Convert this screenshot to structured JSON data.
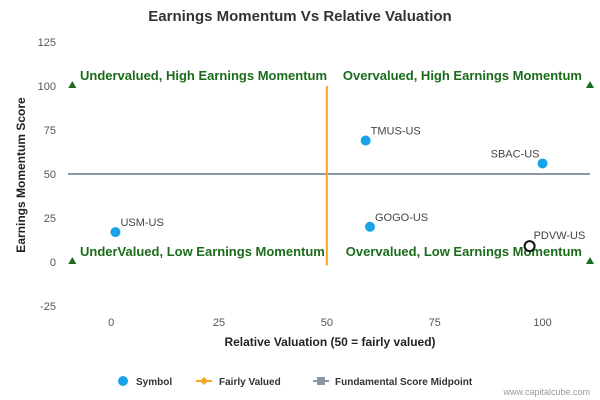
{
  "chart_data": {
    "type": "scatter",
    "title": "Earnings Momentum Vs Relative Valuation",
    "xlabel": "Relative Valuation (50 = fairly valued)",
    "ylabel": "Earnings Momentum Score",
    "xlim": [
      -10,
      111
    ],
    "ylim": [
      -25,
      125
    ],
    "x_ticks": [
      0,
      25,
      50,
      75,
      100
    ],
    "y_ticks": [
      -25,
      0,
      25,
      50,
      75,
      100,
      125
    ],
    "grid": false,
    "series": [
      {
        "name": "Symbol",
        "color": "#1aa3e8",
        "points": [
          {
            "label": "USM-US",
            "x": 1,
            "y": 17
          },
          {
            "label": "TMUS-US",
            "x": 59,
            "y": 69
          },
          {
            "label": "SBAC-US",
            "x": 100,
            "y": 56
          },
          {
            "label": "GOGO-US",
            "x": 60,
            "y": 20
          },
          {
            "label": "PDVW-US",
            "x": 97,
            "y": 9,
            "highlight": true
          }
        ]
      },
      {
        "name": "Fairly Valued",
        "color": "#f5a623",
        "line": {
          "x": 50,
          "y_from": -2,
          "y_to": 100
        }
      },
      {
        "name": "Fundamental Score Midpoint",
        "color": "#8a95a5",
        "line": {
          "y": 50,
          "x_from": -10,
          "x_to": 111
        }
      }
    ],
    "quadrant_labels": [
      {
        "text": "Undervalued, High Earnings Momentum",
        "x": -9,
        "y": 100
      },
      {
        "text": "Overvalued, High Earnings Momentum",
        "x": 111,
        "y": 100
      },
      {
        "text": "UnderValued, Low Earnings Momentum",
        "x": -9,
        "y": 0
      },
      {
        "text": "Overvalued, Low Earnings Momentum",
        "x": 111,
        "y": 0
      }
    ],
    "quadrant_marker_color": "#1a6b1a",
    "legend_position": "bottom-center"
  },
  "credit": "www.capitalcube.com"
}
